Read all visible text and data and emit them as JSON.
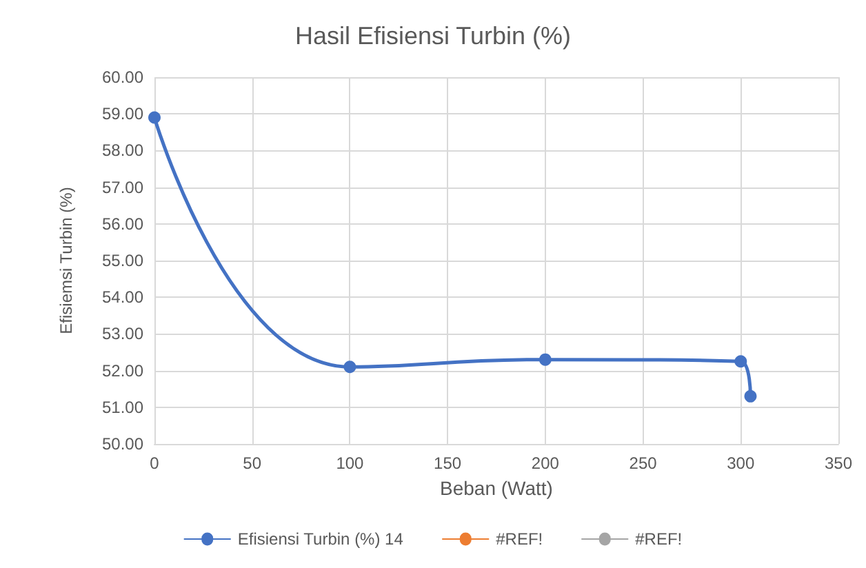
{
  "chart_data": {
    "type": "line",
    "title": "Hasil Efisiensi Turbin (%)",
    "xlabel": "Beban (Watt)",
    "ylabel": "Efisiemsi Turbin (%)",
    "x": [
      0,
      100,
      200,
      300,
      305
    ],
    "series": [
      {
        "name": "Efisiensi Turbin (%) 14",
        "color": "#4472c4",
        "values": [
          58.9,
          52.1,
          52.3,
          52.25,
          51.3
        ]
      },
      {
        "name": "#REF!",
        "color": "#ed7d31",
        "values": [
          null,
          null,
          null,
          null,
          null
        ]
      },
      {
        "name": "#REF!",
        "color": "#a5a5a5",
        "values": [
          null,
          null,
          null,
          null,
          null
        ]
      }
    ],
    "xlim": [
      0,
      350
    ],
    "xticks": [
      0,
      50,
      100,
      150,
      200,
      250,
      300,
      350
    ],
    "ylim": [
      50,
      60
    ],
    "yticks": [
      {
        "value": 50,
        "label": "50.00"
      },
      {
        "value": 51,
        "label": "51.00"
      },
      {
        "value": 52,
        "label": "52.00"
      },
      {
        "value": 53,
        "label": "53.00"
      },
      {
        "value": 54,
        "label": "54.00"
      },
      {
        "value": 55,
        "label": "55.00"
      },
      {
        "value": 56,
        "label": "56.00"
      },
      {
        "value": 57,
        "label": "57.00"
      },
      {
        "value": 58,
        "label": "58.00"
      },
      {
        "value": 59,
        "label": "59.00"
      },
      {
        "value": 60,
        "label": "60.00"
      }
    ],
    "grid": true,
    "legend": "bottom",
    "marker": "circle",
    "line_style": "solid"
  }
}
